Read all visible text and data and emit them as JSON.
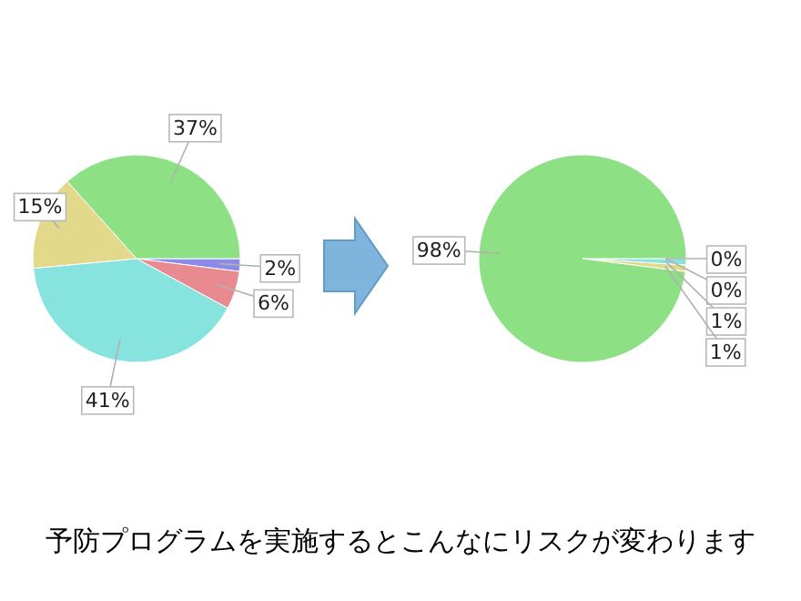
{
  "chart_data": [
    {
      "type": "pie",
      "categories": [
        null,
        null,
        null,
        null,
        null
      ],
      "values": [
        2,
        6,
        41,
        15,
        37
      ],
      "value_labels": [
        "2%",
        "6%",
        "41%",
        "15%",
        "37%"
      ],
      "colors": [
        "#8a8ae8",
        "#e88a90",
        "#86e3de",
        "#e3d98a",
        "#8ee084"
      ]
    },
    {
      "type": "pie",
      "categories": [
        null,
        null,
        null,
        null,
        null
      ],
      "values": [
        0,
        0,
        1,
        1,
        98
      ],
      "value_labels": [
        "0%",
        "0%",
        "1%",
        "1%",
        "98%"
      ],
      "colors": [
        "#8a8ae8",
        "#e88a90",
        "#86e3de",
        "#e3d98a",
        "#8ee084"
      ]
    },
    {
      "type": "other",
      "annotations": [
        "予防プログラムを実施するとこんなにリスクが変わります"
      ]
    }
  ]
}
